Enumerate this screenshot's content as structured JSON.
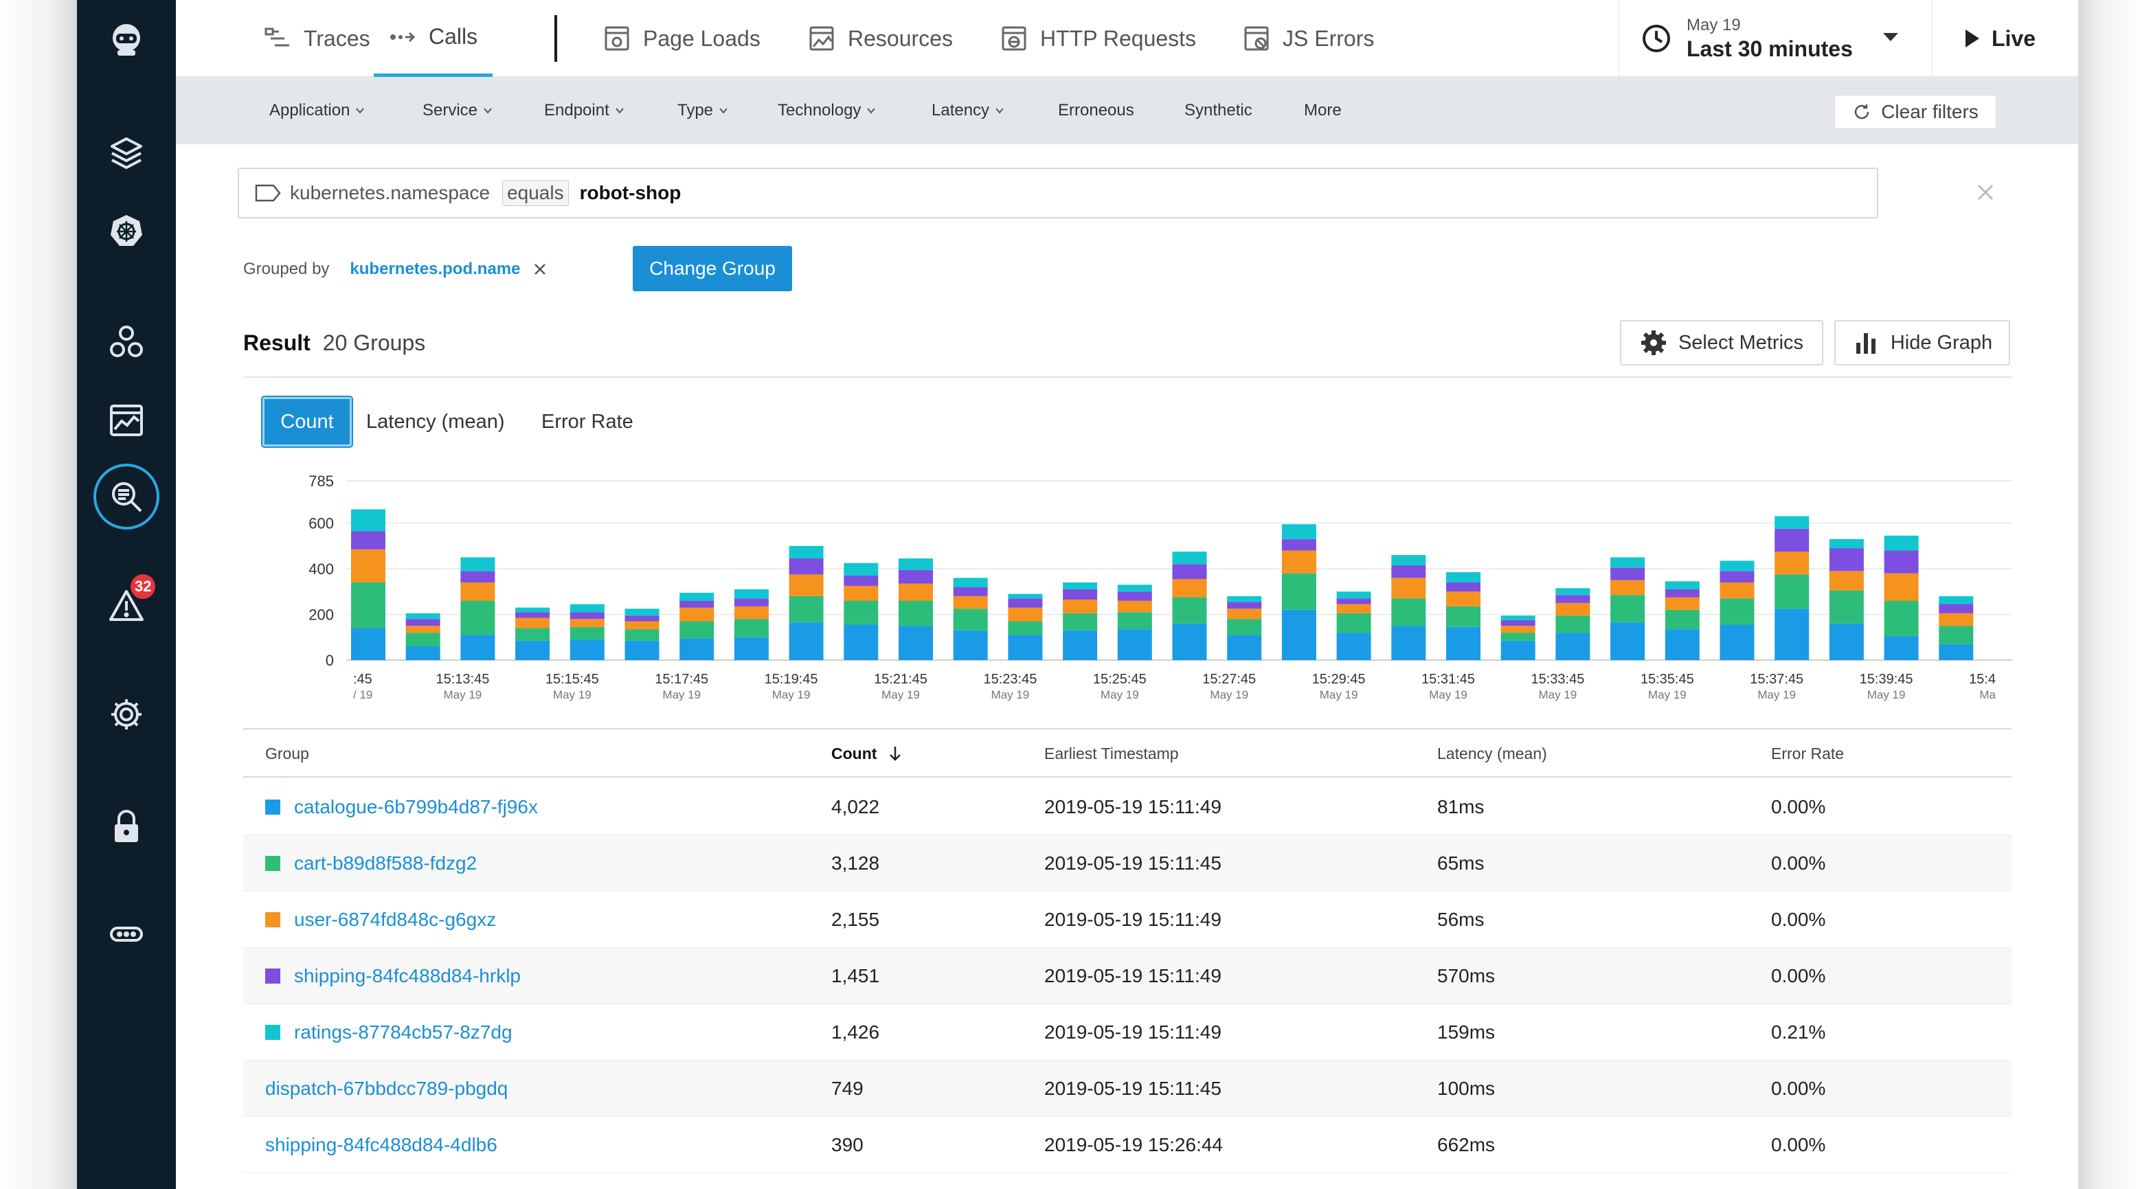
{
  "nav": {
    "tabs": [
      {
        "label": "Traces",
        "icon": "traces-icon"
      },
      {
        "label": "Calls",
        "icon": "calls-icon"
      },
      {
        "label": "Page Loads",
        "icon": "page-loads-icon"
      },
      {
        "label": "Resources",
        "icon": "resources-icon"
      },
      {
        "label": "HTTP Requests",
        "icon": "http-requests-icon"
      },
      {
        "label": "JS Errors",
        "icon": "js-errors-icon"
      }
    ],
    "active_tab": "Calls",
    "time": {
      "date": "May 19",
      "range": "Last 30 minutes"
    },
    "live_label": "Live"
  },
  "sidebar": {
    "badge_count": "32",
    "icons": [
      "robot-logo-icon",
      "layers-icon",
      "kubernetes-icon",
      "services-icon",
      "dashboard-icon",
      "analyze-search-icon",
      "alert-icon",
      "settings-gear-icon",
      "lock-icon",
      "more-icon"
    ]
  },
  "filters": {
    "items": [
      {
        "label": "Application",
        "dropdown": true
      },
      {
        "label": "Service",
        "dropdown": true
      },
      {
        "label": "Endpoint",
        "dropdown": true
      },
      {
        "label": "Type",
        "dropdown": true
      },
      {
        "label": "Technology",
        "dropdown": true
      },
      {
        "label": "Latency",
        "dropdown": true
      },
      {
        "label": "Erroneous",
        "dropdown": false
      },
      {
        "label": "Synthetic",
        "dropdown": false
      },
      {
        "label": "More",
        "dropdown": false
      }
    ],
    "clear_label": "Clear filters"
  },
  "query": {
    "key": "kubernetes.namespace",
    "operator": "equals",
    "value": "robot-shop"
  },
  "grouping": {
    "label": "Grouped by",
    "field": "kubernetes.pod.name",
    "change_label": "Change Group"
  },
  "result": {
    "label": "Result",
    "count_text": "20 Groups",
    "select_metrics_label": "Select Metrics",
    "hide_graph_label": "Hide Graph"
  },
  "metric_tabs": {
    "items": [
      "Count",
      "Latency (mean)",
      "Error Rate"
    ],
    "active": "Count"
  },
  "colors": {
    "catalogue": "#1a9be6",
    "cart": "#2dbd7a",
    "user": "#f6921e",
    "shipping": "#7c4fe0",
    "ratings": "#12c6cf",
    "accent": "#1a8fd6"
  },
  "chart_data": {
    "type": "bar",
    "stacked": true,
    "ylim": [
      0,
      785
    ],
    "yticks": [
      "0",
      "200",
      "400",
      "600",
      "785"
    ],
    "xticks": [
      {
        "time": ":45",
        "date": "/ 19"
      },
      {
        "time": "15:13:45",
        "date": "May 19"
      },
      {
        "time": "15:15:45",
        "date": "May 19"
      },
      {
        "time": "15:17:45",
        "date": "May 19"
      },
      {
        "time": "15:19:45",
        "date": "May 19"
      },
      {
        "time": "15:21:45",
        "date": "May 19"
      },
      {
        "time": "15:23:45",
        "date": "May 19"
      },
      {
        "time": "15:25:45",
        "date": "May 19"
      },
      {
        "time": "15:27:45",
        "date": "May 19"
      },
      {
        "time": "15:29:45",
        "date": "May 19"
      },
      {
        "time": "15:31:45",
        "date": "May 19"
      },
      {
        "time": "15:33:45",
        "date": "May 19"
      },
      {
        "time": "15:35:45",
        "date": "May 19"
      },
      {
        "time": "15:37:45",
        "date": "May 19"
      },
      {
        "time": "15:39:45",
        "date": "May 19"
      },
      {
        "time": "15:4",
        "date": "Ma"
      }
    ],
    "series": [
      {
        "name": "catalogue-6b799b4d87-fj96x",
        "color": "#1a9be6",
        "values": [
          140,
          60,
          110,
          85,
          90,
          85,
          95,
          100,
          165,
          155,
          150,
          130,
          110,
          130,
          135,
          160,
          110,
          220,
          120,
          150,
          145,
          85,
          120,
          165,
          135,
          155,
          225,
          160,
          105,
          70
        ]
      },
      {
        "name": "cart-b89d8f588-fdzg2",
        "color": "#2dbd7a",
        "values": [
          200,
          60,
          150,
          55,
          55,
          50,
          75,
          80,
          115,
          105,
          110,
          95,
          60,
          75,
          75,
          115,
          70,
          160,
          85,
          120,
          90,
          35,
          75,
          120,
          85,
          115,
          150,
          145,
          155,
          80
        ]
      },
      {
        "name": "user-6874fd848c-g6gxz",
        "color": "#f6921e",
        "values": [
          145,
          30,
          80,
          45,
          35,
          35,
          60,
          55,
          95,
          65,
          75,
          55,
          60,
          60,
          50,
          80,
          45,
          100,
          40,
          90,
          65,
          30,
          55,
          65,
          55,
          70,
          100,
          85,
          120,
          55
        ]
      },
      {
        "name": "shipping-84fc488d84-hrklp",
        "color": "#7c4fe0",
        "values": [
          80,
          30,
          50,
          25,
          30,
          25,
          30,
          35,
          70,
          45,
          60,
          40,
          40,
          45,
          40,
          65,
          30,
          50,
          25,
          55,
          40,
          25,
          35,
          55,
          35,
          50,
          100,
          100,
          100,
          40
        ]
      },
      {
        "name": "ratings-87784cb57-8z7dg",
        "color": "#12c6cf",
        "values": [
          95,
          25,
          60,
          20,
          35,
          30,
          35,
          40,
          55,
          55,
          50,
          40,
          20,
          30,
          30,
          55,
          25,
          65,
          30,
          45,
          45,
          20,
          30,
          45,
          35,
          45,
          55,
          40,
          65,
          35
        ]
      }
    ]
  },
  "table": {
    "headers": [
      "Group",
      "Count",
      "Earliest Timestamp",
      "Latency (mean)",
      "Error Rate"
    ],
    "sorted_by": "Count",
    "rows": [
      {
        "group": "catalogue-6b799b4d87-fj96x",
        "swatch": "#1a9be6",
        "count": "4,022",
        "timestamp": "2019-05-19 15:11:49",
        "latency": "81ms",
        "error": "0.00%"
      },
      {
        "group": "cart-b89d8f588-fdzg2",
        "swatch": "#2dbd7a",
        "count": "3,128",
        "timestamp": "2019-05-19 15:11:45",
        "latency": "65ms",
        "error": "0.00%"
      },
      {
        "group": "user-6874fd848c-g6gxz",
        "swatch": "#f6921e",
        "count": "2,155",
        "timestamp": "2019-05-19 15:11:49",
        "latency": "56ms",
        "error": "0.00%"
      },
      {
        "group": "shipping-84fc488d84-hrklp",
        "swatch": "#7c4fe0",
        "count": "1,451",
        "timestamp": "2019-05-19 15:11:49",
        "latency": "570ms",
        "error": "0.00%"
      },
      {
        "group": "ratings-87784cb57-8z7dg",
        "swatch": "#12c6cf",
        "count": "1,426",
        "timestamp": "2019-05-19 15:11:49",
        "latency": "159ms",
        "error": "0.21%"
      },
      {
        "group": "dispatch-67bbdcc789-pbgdq",
        "swatch": null,
        "count": "749",
        "timestamp": "2019-05-19 15:11:45",
        "latency": "100ms",
        "error": "0.00%"
      },
      {
        "group": "shipping-84fc488d84-4dlb6",
        "swatch": null,
        "count": "390",
        "timestamp": "2019-05-19 15:26:44",
        "latency": "662ms",
        "error": "0.00%"
      }
    ]
  }
}
